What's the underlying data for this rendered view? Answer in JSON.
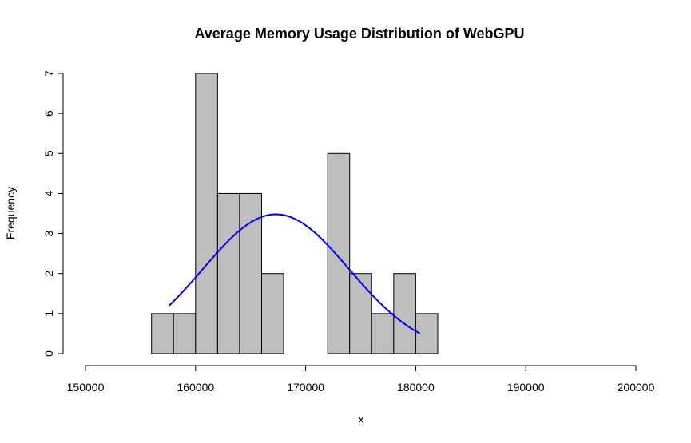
{
  "chart_data": {
    "type": "bar",
    "subtype": "histogram",
    "title": "Average Memory Usage Distribution of WebGPU",
    "xlabel": "x",
    "ylabel": "Frequency",
    "xlim": [
      150000,
      200000
    ],
    "ylim": [
      0,
      7
    ],
    "x_ticks": [
      150000,
      160000,
      170000,
      180000,
      190000,
      200000
    ],
    "y_ticks": [
      0,
      1,
      2,
      3,
      4,
      5,
      6,
      7
    ],
    "bins": [
      {
        "start": 156000,
        "end": 158000,
        "count": 1
      },
      {
        "start": 158000,
        "end": 160000,
        "count": 1
      },
      {
        "start": 160000,
        "end": 162000,
        "count": 7
      },
      {
        "start": 162000,
        "end": 164000,
        "count": 4
      },
      {
        "start": 164000,
        "end": 166000,
        "count": 4
      },
      {
        "start": 166000,
        "end": 168000,
        "count": 2
      },
      {
        "start": 168000,
        "end": 170000,
        "count": 0
      },
      {
        "start": 170000,
        "end": 172000,
        "count": 0
      },
      {
        "start": 172000,
        "end": 174000,
        "count": 5
      },
      {
        "start": 174000,
        "end": 176000,
        "count": 2
      },
      {
        "start": 176000,
        "end": 178000,
        "count": 1
      },
      {
        "start": 178000,
        "end": 180000,
        "count": 2
      },
      {
        "start": 180000,
        "end": 182000,
        "count": 1
      }
    ],
    "density_curve": {
      "type": "normal",
      "mean": 167300,
      "peak": 3.48,
      "sd": 6650,
      "x_range": [
        157600,
        180400
      ]
    },
    "colors": {
      "bar_fill": "#bebebe",
      "bar_stroke": "#000000",
      "curve": "#0000ff"
    },
    "grid": false
  }
}
